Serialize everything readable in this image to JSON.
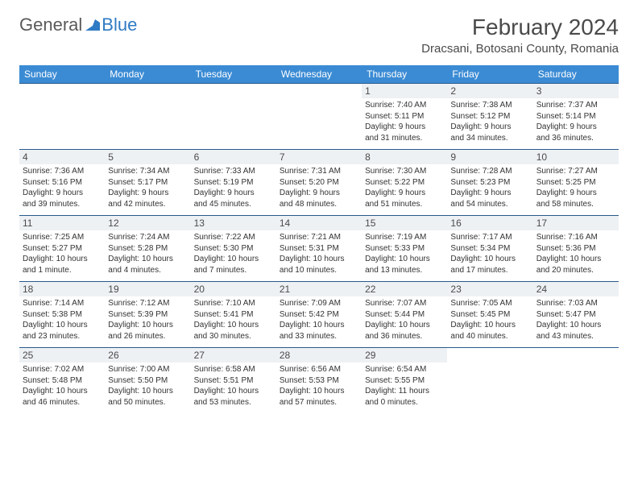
{
  "brand": {
    "part1": "General",
    "part2": "Blue"
  },
  "title": "February 2024",
  "location": "Dracsani, Botosani County, Romania",
  "colors": {
    "header_bg": "#3b8bd4",
    "header_text": "#ffffff",
    "row_divider": "#285a8c",
    "daynum_bg": "#eef1f4",
    "text": "#333333",
    "brand_gray": "#5a5a5a",
    "brand_blue": "#2f7bc4"
  },
  "day_headers": [
    "Sunday",
    "Monday",
    "Tuesday",
    "Wednesday",
    "Thursday",
    "Friday",
    "Saturday"
  ],
  "weeks": [
    [
      {
        "empty": true
      },
      {
        "empty": true
      },
      {
        "empty": true
      },
      {
        "empty": true
      },
      {
        "n": "1",
        "sunrise": "Sunrise: 7:40 AM",
        "sunset": "Sunset: 5:11 PM",
        "day1": "Daylight: 9 hours",
        "day2": "and 31 minutes."
      },
      {
        "n": "2",
        "sunrise": "Sunrise: 7:38 AM",
        "sunset": "Sunset: 5:12 PM",
        "day1": "Daylight: 9 hours",
        "day2": "and 34 minutes."
      },
      {
        "n": "3",
        "sunrise": "Sunrise: 7:37 AM",
        "sunset": "Sunset: 5:14 PM",
        "day1": "Daylight: 9 hours",
        "day2": "and 36 minutes."
      }
    ],
    [
      {
        "n": "4",
        "sunrise": "Sunrise: 7:36 AM",
        "sunset": "Sunset: 5:16 PM",
        "day1": "Daylight: 9 hours",
        "day2": "and 39 minutes."
      },
      {
        "n": "5",
        "sunrise": "Sunrise: 7:34 AM",
        "sunset": "Sunset: 5:17 PM",
        "day1": "Daylight: 9 hours",
        "day2": "and 42 minutes."
      },
      {
        "n": "6",
        "sunrise": "Sunrise: 7:33 AM",
        "sunset": "Sunset: 5:19 PM",
        "day1": "Daylight: 9 hours",
        "day2": "and 45 minutes."
      },
      {
        "n": "7",
        "sunrise": "Sunrise: 7:31 AM",
        "sunset": "Sunset: 5:20 PM",
        "day1": "Daylight: 9 hours",
        "day2": "and 48 minutes."
      },
      {
        "n": "8",
        "sunrise": "Sunrise: 7:30 AM",
        "sunset": "Sunset: 5:22 PM",
        "day1": "Daylight: 9 hours",
        "day2": "and 51 minutes."
      },
      {
        "n": "9",
        "sunrise": "Sunrise: 7:28 AM",
        "sunset": "Sunset: 5:23 PM",
        "day1": "Daylight: 9 hours",
        "day2": "and 54 minutes."
      },
      {
        "n": "10",
        "sunrise": "Sunrise: 7:27 AM",
        "sunset": "Sunset: 5:25 PM",
        "day1": "Daylight: 9 hours",
        "day2": "and 58 minutes."
      }
    ],
    [
      {
        "n": "11",
        "sunrise": "Sunrise: 7:25 AM",
        "sunset": "Sunset: 5:27 PM",
        "day1": "Daylight: 10 hours",
        "day2": "and 1 minute."
      },
      {
        "n": "12",
        "sunrise": "Sunrise: 7:24 AM",
        "sunset": "Sunset: 5:28 PM",
        "day1": "Daylight: 10 hours",
        "day2": "and 4 minutes."
      },
      {
        "n": "13",
        "sunrise": "Sunrise: 7:22 AM",
        "sunset": "Sunset: 5:30 PM",
        "day1": "Daylight: 10 hours",
        "day2": "and 7 minutes."
      },
      {
        "n": "14",
        "sunrise": "Sunrise: 7:21 AM",
        "sunset": "Sunset: 5:31 PM",
        "day1": "Daylight: 10 hours",
        "day2": "and 10 minutes."
      },
      {
        "n": "15",
        "sunrise": "Sunrise: 7:19 AM",
        "sunset": "Sunset: 5:33 PM",
        "day1": "Daylight: 10 hours",
        "day2": "and 13 minutes."
      },
      {
        "n": "16",
        "sunrise": "Sunrise: 7:17 AM",
        "sunset": "Sunset: 5:34 PM",
        "day1": "Daylight: 10 hours",
        "day2": "and 17 minutes."
      },
      {
        "n": "17",
        "sunrise": "Sunrise: 7:16 AM",
        "sunset": "Sunset: 5:36 PM",
        "day1": "Daylight: 10 hours",
        "day2": "and 20 minutes."
      }
    ],
    [
      {
        "n": "18",
        "sunrise": "Sunrise: 7:14 AM",
        "sunset": "Sunset: 5:38 PM",
        "day1": "Daylight: 10 hours",
        "day2": "and 23 minutes."
      },
      {
        "n": "19",
        "sunrise": "Sunrise: 7:12 AM",
        "sunset": "Sunset: 5:39 PM",
        "day1": "Daylight: 10 hours",
        "day2": "and 26 minutes."
      },
      {
        "n": "20",
        "sunrise": "Sunrise: 7:10 AM",
        "sunset": "Sunset: 5:41 PM",
        "day1": "Daylight: 10 hours",
        "day2": "and 30 minutes."
      },
      {
        "n": "21",
        "sunrise": "Sunrise: 7:09 AM",
        "sunset": "Sunset: 5:42 PM",
        "day1": "Daylight: 10 hours",
        "day2": "and 33 minutes."
      },
      {
        "n": "22",
        "sunrise": "Sunrise: 7:07 AM",
        "sunset": "Sunset: 5:44 PM",
        "day1": "Daylight: 10 hours",
        "day2": "and 36 minutes."
      },
      {
        "n": "23",
        "sunrise": "Sunrise: 7:05 AM",
        "sunset": "Sunset: 5:45 PM",
        "day1": "Daylight: 10 hours",
        "day2": "and 40 minutes."
      },
      {
        "n": "24",
        "sunrise": "Sunrise: 7:03 AM",
        "sunset": "Sunset: 5:47 PM",
        "day1": "Daylight: 10 hours",
        "day2": "and 43 minutes."
      }
    ],
    [
      {
        "n": "25",
        "sunrise": "Sunrise: 7:02 AM",
        "sunset": "Sunset: 5:48 PM",
        "day1": "Daylight: 10 hours",
        "day2": "and 46 minutes."
      },
      {
        "n": "26",
        "sunrise": "Sunrise: 7:00 AM",
        "sunset": "Sunset: 5:50 PM",
        "day1": "Daylight: 10 hours",
        "day2": "and 50 minutes."
      },
      {
        "n": "27",
        "sunrise": "Sunrise: 6:58 AM",
        "sunset": "Sunset: 5:51 PM",
        "day1": "Daylight: 10 hours",
        "day2": "and 53 minutes."
      },
      {
        "n": "28",
        "sunrise": "Sunrise: 6:56 AM",
        "sunset": "Sunset: 5:53 PM",
        "day1": "Daylight: 10 hours",
        "day2": "and 57 minutes."
      },
      {
        "n": "29",
        "sunrise": "Sunrise: 6:54 AM",
        "sunset": "Sunset: 5:55 PM",
        "day1": "Daylight: 11 hours",
        "day2": "and 0 minutes."
      },
      {
        "empty": true
      },
      {
        "empty": true
      }
    ]
  ]
}
